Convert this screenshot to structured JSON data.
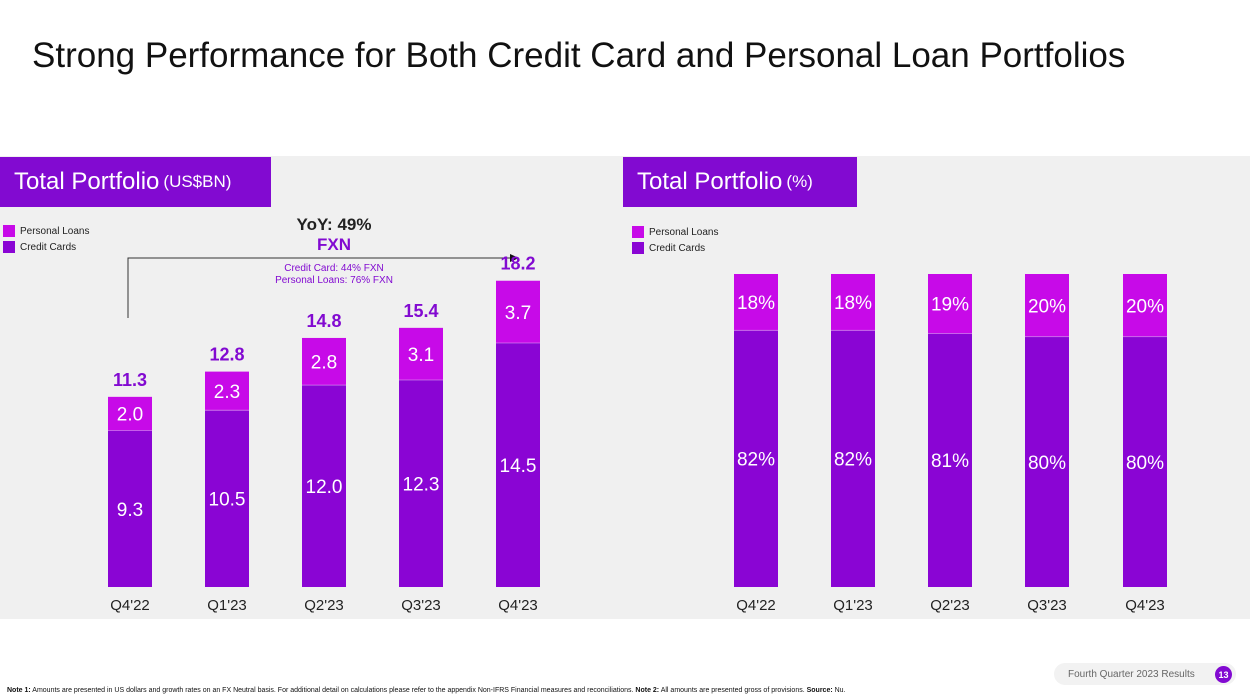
{
  "page": {
    "title": "Strong Performance for Both Credit Card and Personal Loan Portfolios",
    "colors": {
      "accent": "#820ad1",
      "personal_loans": "#c70ae8",
      "credit_cards": "#8a05d4",
      "panel_bg": "#f0f0f0"
    },
    "left_panel": {
      "title": "Total Portfolio",
      "unit": "(US$BN)",
      "legend": [
        "Personal Loans",
        "Credit Cards"
      ],
      "yoy_label": "YoY: 49%",
      "yoy_fxn": "FXN",
      "yoy_credit_card": "Credit Card: 44% FXN",
      "yoy_personal_loans": "Personal Loans: 76% FXN"
    },
    "right_panel": {
      "title": "Total Portfolio",
      "unit": "(%)",
      "legend": [
        "Personal Loans",
        "Credit Cards"
      ]
    },
    "footer": {
      "note1_label": "Note 1:",
      "note1_text": " Amounts are presented in US dollars and growth rates on an FX Neutral basis. For additional detail on calculations please refer to the appendix Non-IFRS Financial measures and reconciliations. ",
      "note2_label": "Note 2:",
      "note2_text": " All amounts are presented gross of provisions. ",
      "source_label": "Source:",
      "source_text": " Nu.",
      "deck_label": "Fourth Quarter 2023 Results",
      "page_number": "13"
    }
  },
  "chart_data": [
    {
      "type": "bar",
      "stacked": true,
      "title": "Total Portfolio (US$BN)",
      "categories": [
        "Q4'22",
        "Q1'23",
        "Q2'23",
        "Q3'23",
        "Q4'23"
      ],
      "series": [
        {
          "name": "Credit Cards",
          "values": [
            9.3,
            10.5,
            12.0,
            12.3,
            14.5
          ],
          "labels": [
            "9.3",
            "10.5",
            "12.0",
            "12.3",
            "14.5"
          ]
        },
        {
          "name": "Personal Loans",
          "values": [
            2.0,
            2.3,
            2.8,
            3.1,
            3.7
          ],
          "labels": [
            "2.0",
            "2.3",
            "2.8",
            "3.1",
            "3.7"
          ]
        }
      ],
      "totals": [
        11.3,
        12.8,
        14.8,
        15.4,
        18.2
      ],
      "total_labels": [
        "11.3",
        "12.8",
        "14.8",
        "15.4",
        "18.2"
      ],
      "ylim": [
        0,
        18.6
      ],
      "legend": "top-left",
      "grid": false
    },
    {
      "type": "bar",
      "stacked": true,
      "title": "Total Portfolio (%)",
      "categories": [
        "Q4'22",
        "Q1'23",
        "Q2'23",
        "Q3'23",
        "Q4'23"
      ],
      "series": [
        {
          "name": "Credit Cards",
          "values": [
            82,
            82,
            81,
            80,
            80
          ],
          "labels": [
            "82%",
            "82%",
            "81%",
            "80%",
            "80%"
          ]
        },
        {
          "name": "Personal Loans",
          "values": [
            18,
            18,
            19,
            20,
            20
          ],
          "labels": [
            "18%",
            "18%",
            "19%",
            "20%",
            "20%"
          ]
        }
      ],
      "ylim": [
        0,
        100
      ],
      "legend": "top-left",
      "grid": false
    }
  ]
}
